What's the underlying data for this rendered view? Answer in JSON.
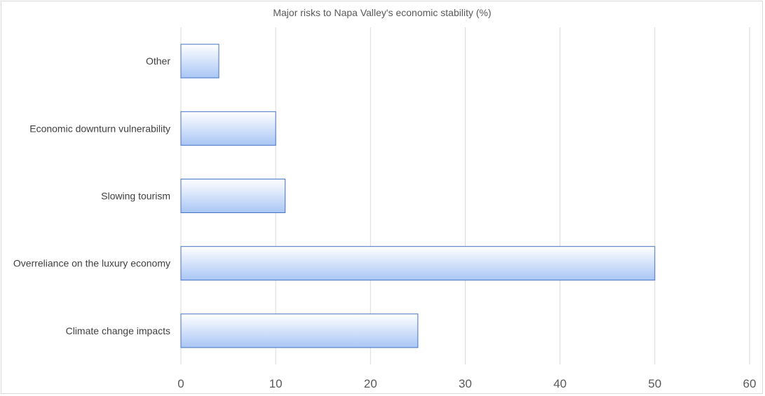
{
  "chart_data": {
    "type": "bar",
    "orientation": "horizontal",
    "title": "Major risks to Napa Valley's economic stability (%)",
    "categories": [
      "Climate change impacts",
      "Overreliance on the luxury economy",
      "Slowing tourism",
      "Economic downturn vulnerability",
      "Other"
    ],
    "values": [
      25,
      50,
      11,
      10,
      4
    ],
    "xlim": [
      0,
      60
    ],
    "xticks": [
      "0",
      "10",
      "20",
      "30",
      "40",
      "50",
      "60"
    ],
    "grid": "vertical",
    "legend": "none",
    "colors": {
      "bar_fill_light": "#ffffff",
      "bar_fill_dark": "#a9c6f5",
      "bar_stroke": "#4472c4",
      "grid": "#d9d9d9"
    }
  }
}
